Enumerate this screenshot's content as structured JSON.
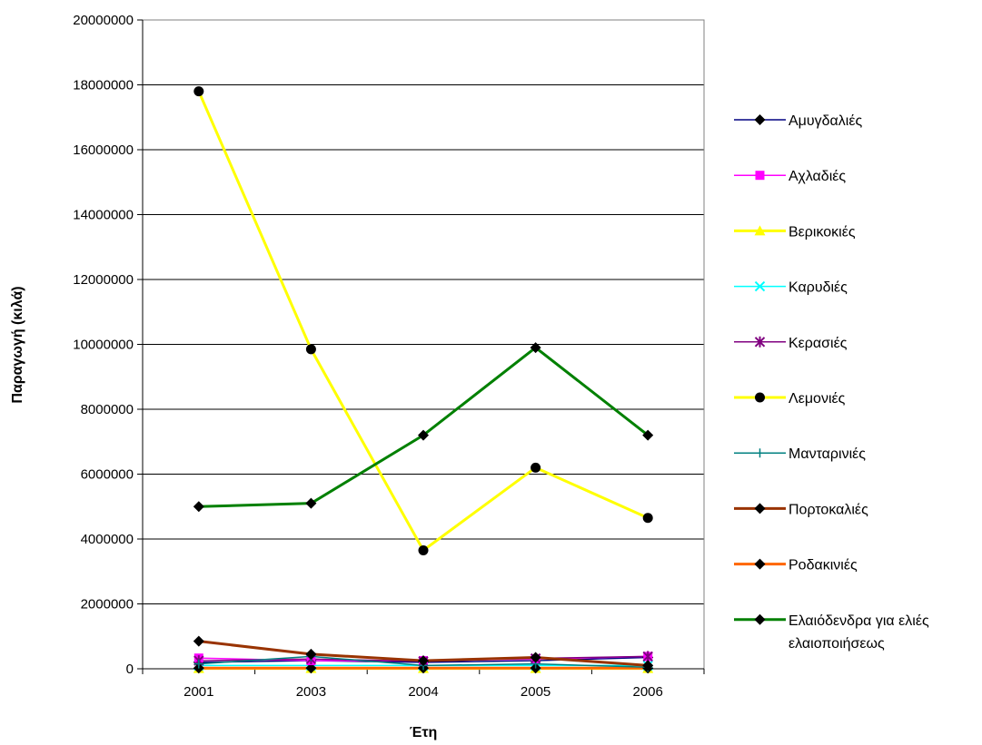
{
  "chart_data": {
    "type": "line",
    "title": "",
    "xlabel": "Έτη",
    "ylabel": "Παραγωγή (κιλά)",
    "categories": [
      "2001",
      "2003",
      "2004",
      "2005",
      "2006"
    ],
    "ylim": [
      0,
      20000000
    ],
    "yticks": [
      "0",
      "2000000",
      "4000000",
      "6000000",
      "8000000",
      "10000000",
      "12000000",
      "14000000",
      "16000000",
      "18000000",
      "20000000"
    ],
    "grid": "horizontal",
    "legend_position": "right",
    "series": [
      {
        "name": "Αμυγδαλιές",
        "values": [
          200000,
          250000,
          200000,
          250000,
          350000
        ],
        "color": "#000080",
        "marker": "diamond"
      },
      {
        "name": "Αχλαδιές",
        "values": [
          330000,
          250000,
          250000,
          300000,
          380000
        ],
        "color": "#FF00FF",
        "marker": "square"
      },
      {
        "name": "Βερικοκιές",
        "values": [
          10000,
          10000,
          10000,
          10000,
          10000
        ],
        "color": "#FFFF00",
        "marker": "triangle"
      },
      {
        "name": "Καρυδιές",
        "values": [
          100000,
          100000,
          100000,
          100000,
          100000
        ],
        "color": "#00FFFF",
        "marker": "x"
      },
      {
        "name": "Κερασιές",
        "values": [
          250000,
          300000,
          230000,
          320000,
          380000
        ],
        "color": "#800080",
        "marker": "star"
      },
      {
        "name": "Λεμονιές",
        "values": [
          17800000,
          9850000,
          3650000,
          6200000,
          4650000
        ],
        "color": "#FFFF00",
        "marker": "circle"
      },
      {
        "name": "Μανταρινιές",
        "values": [
          150000,
          380000,
          100000,
          150000,
          50000
        ],
        "color": "#008080",
        "marker": "plus"
      },
      {
        "name": "Πορτοκαλιές",
        "values": [
          850000,
          450000,
          250000,
          350000,
          100000
        ],
        "color": "#993300",
        "marker": "diamond"
      },
      {
        "name": "Ροδακινιές",
        "values": [
          20000,
          20000,
          20000,
          20000,
          20000
        ],
        "color": "#FF6600",
        "marker": "diamond"
      },
      {
        "name": "Ελαιόδενδρα για ελιές ελαιοποιήσεως",
        "values": [
          5000000,
          5100000,
          7200000,
          9900000,
          7200000
        ],
        "color": "#008000",
        "marker": "diamond"
      }
    ]
  }
}
